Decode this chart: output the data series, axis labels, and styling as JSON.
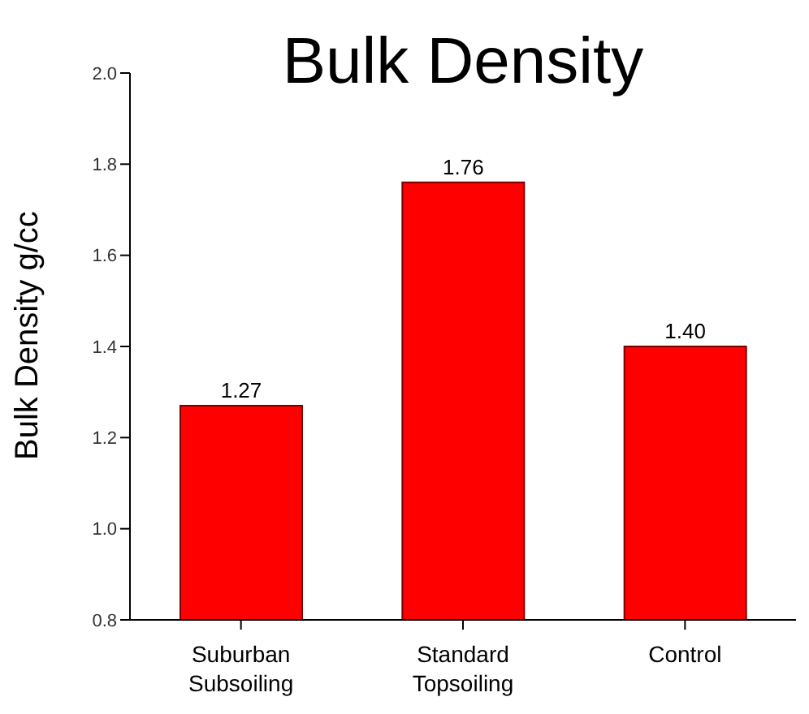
{
  "chart_data": {
    "type": "bar",
    "title": "Bulk Density",
    "ylabel": "Bulk Density g/cc",
    "categories": [
      "Suburban Subsoiling",
      "Standard Topsoiling",
      "Control"
    ],
    "values": [
      1.27,
      1.76,
      1.4
    ],
    "value_labels": [
      "1.27",
      "1.76",
      "1.40"
    ],
    "color": "#ff0000",
    "ylim": [
      0.8,
      2.0
    ],
    "yticks": [
      "0.8",
      "1.0",
      "1.2",
      "1.4",
      "1.6",
      "1.8",
      "2.0"
    ],
    "grid": false
  }
}
